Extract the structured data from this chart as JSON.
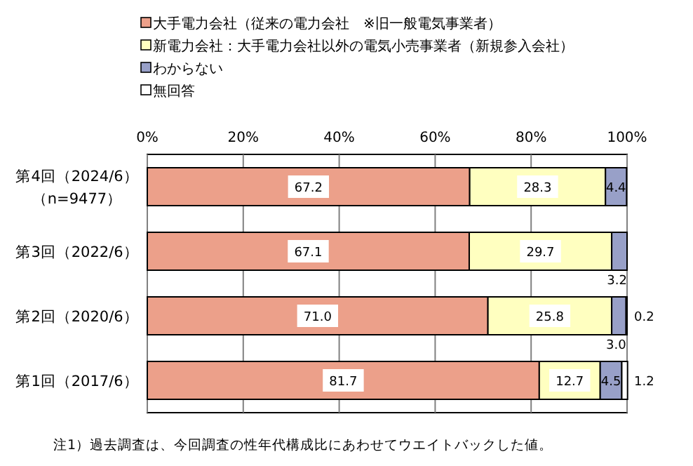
{
  "chart_data": {
    "type": "bar",
    "orientation": "horizontal",
    "stacked": true,
    "categories": [
      "第4回（2024/6）（n=9477）",
      "第3回（2022/6）",
      "第2回（2020/6）",
      "第1回（2017/6）"
    ],
    "series": [
      {
        "name": "大手電力会社（従来の電力会社　※旧一般電気事業者）",
        "color": "#eca08a",
        "values": [
          67.2,
          67.1,
          71.0,
          81.7
        ],
        "value_labels": [
          "67.2",
          "67.1",
          "71.0",
          "81.7"
        ]
      },
      {
        "name": "新電力会社：大手電力会社以外の電気小売事業者（新規参入会社）",
        "color": "#ffffc0",
        "values": [
          28.3,
          29.7,
          25.8,
          12.7
        ],
        "value_labels": [
          "28.3",
          "29.7",
          "25.8",
          "12.7"
        ]
      },
      {
        "name": "わからない",
        "color": "#98a0c8",
        "values": [
          4.4,
          3.2,
          3.0,
          4.5
        ],
        "value_labels": [
          "4.4",
          "3.2",
          "3.0",
          "4.5"
        ]
      },
      {
        "name": "無回答",
        "color": "#ffffff",
        "values": [
          null,
          null,
          0.2,
          1.2
        ],
        "value_labels": [
          null,
          null,
          "0.2",
          "1.2"
        ]
      }
    ],
    "xlim": [
      0,
      100
    ],
    "xticks": [
      {
        "value": 0,
        "label": "0%"
      },
      {
        "value": 20,
        "label": "20%"
      },
      {
        "value": 40,
        "label": "40%"
      },
      {
        "value": 60,
        "label": "60%"
      },
      {
        "value": 80,
        "label": "80%"
      },
      {
        "value": 100,
        "label": "100%"
      }
    ],
    "grid": "x",
    "legend": "top",
    "annotations": [
      "注1）過去調査は、今回調査の性年代構成比にあわせてウエイトバックした値。"
    ]
  }
}
